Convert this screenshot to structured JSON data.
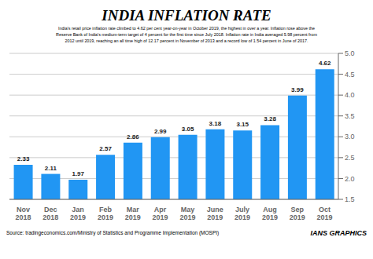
{
  "chart_data": {
    "type": "bar",
    "title": "INDIA INFLATION RATE",
    "subtitle": [
      "India's retail price inflation rate climbed to 4.62 per cent year-on-year in October 2019, the highest in over a year. Inflation rose above the",
      "Reserve Bank of India's medium-term target of 4 percent for the first time since July 2018. Inflation rate in India averaged 5.98 percent from",
      "2012 until 2019, reaching an all time high of 12.17 percent in November of 2013 and a record low of 1.54 percent in June of 2017."
    ],
    "annotations": [
      "Source: tradingeconomics.com/Ministry of Statistics and Programme Implementation (MOSPI)",
      "IANS GRAPHICS"
    ],
    "categories": [
      "Nov\n2018",
      "Dec\n2018",
      "Jan\n2019",
      "Feb\n2019",
      "Mar\n2019",
      "Apr\n2019",
      "May\n2019",
      "June\n2019",
      "July\n2019",
      "Aug\n2019",
      "Sep\n2019",
      "Oct\n2019"
    ],
    "values": [
      2.33,
      2.11,
      1.97,
      2.57,
      2.86,
      2.99,
      3.05,
      3.18,
      3.15,
      3.28,
      3.99,
      4.62
    ],
    "color": "#2196F3",
    "ylim": [
      1.5,
      5.0
    ],
    "yticks": [
      1.5,
      {
        "value": 2.0,
        "label": "2.0"
      },
      2.5,
      {
        "value": 3.0,
        "label": "3.0"
      },
      3.5,
      {
        "value": 4.0,
        "label": "4.0"
      },
      4.5,
      {
        "value": 5.0,
        "label": "5.0"
      }
    ],
    "grid": true,
    "data_labels": true
  }
}
